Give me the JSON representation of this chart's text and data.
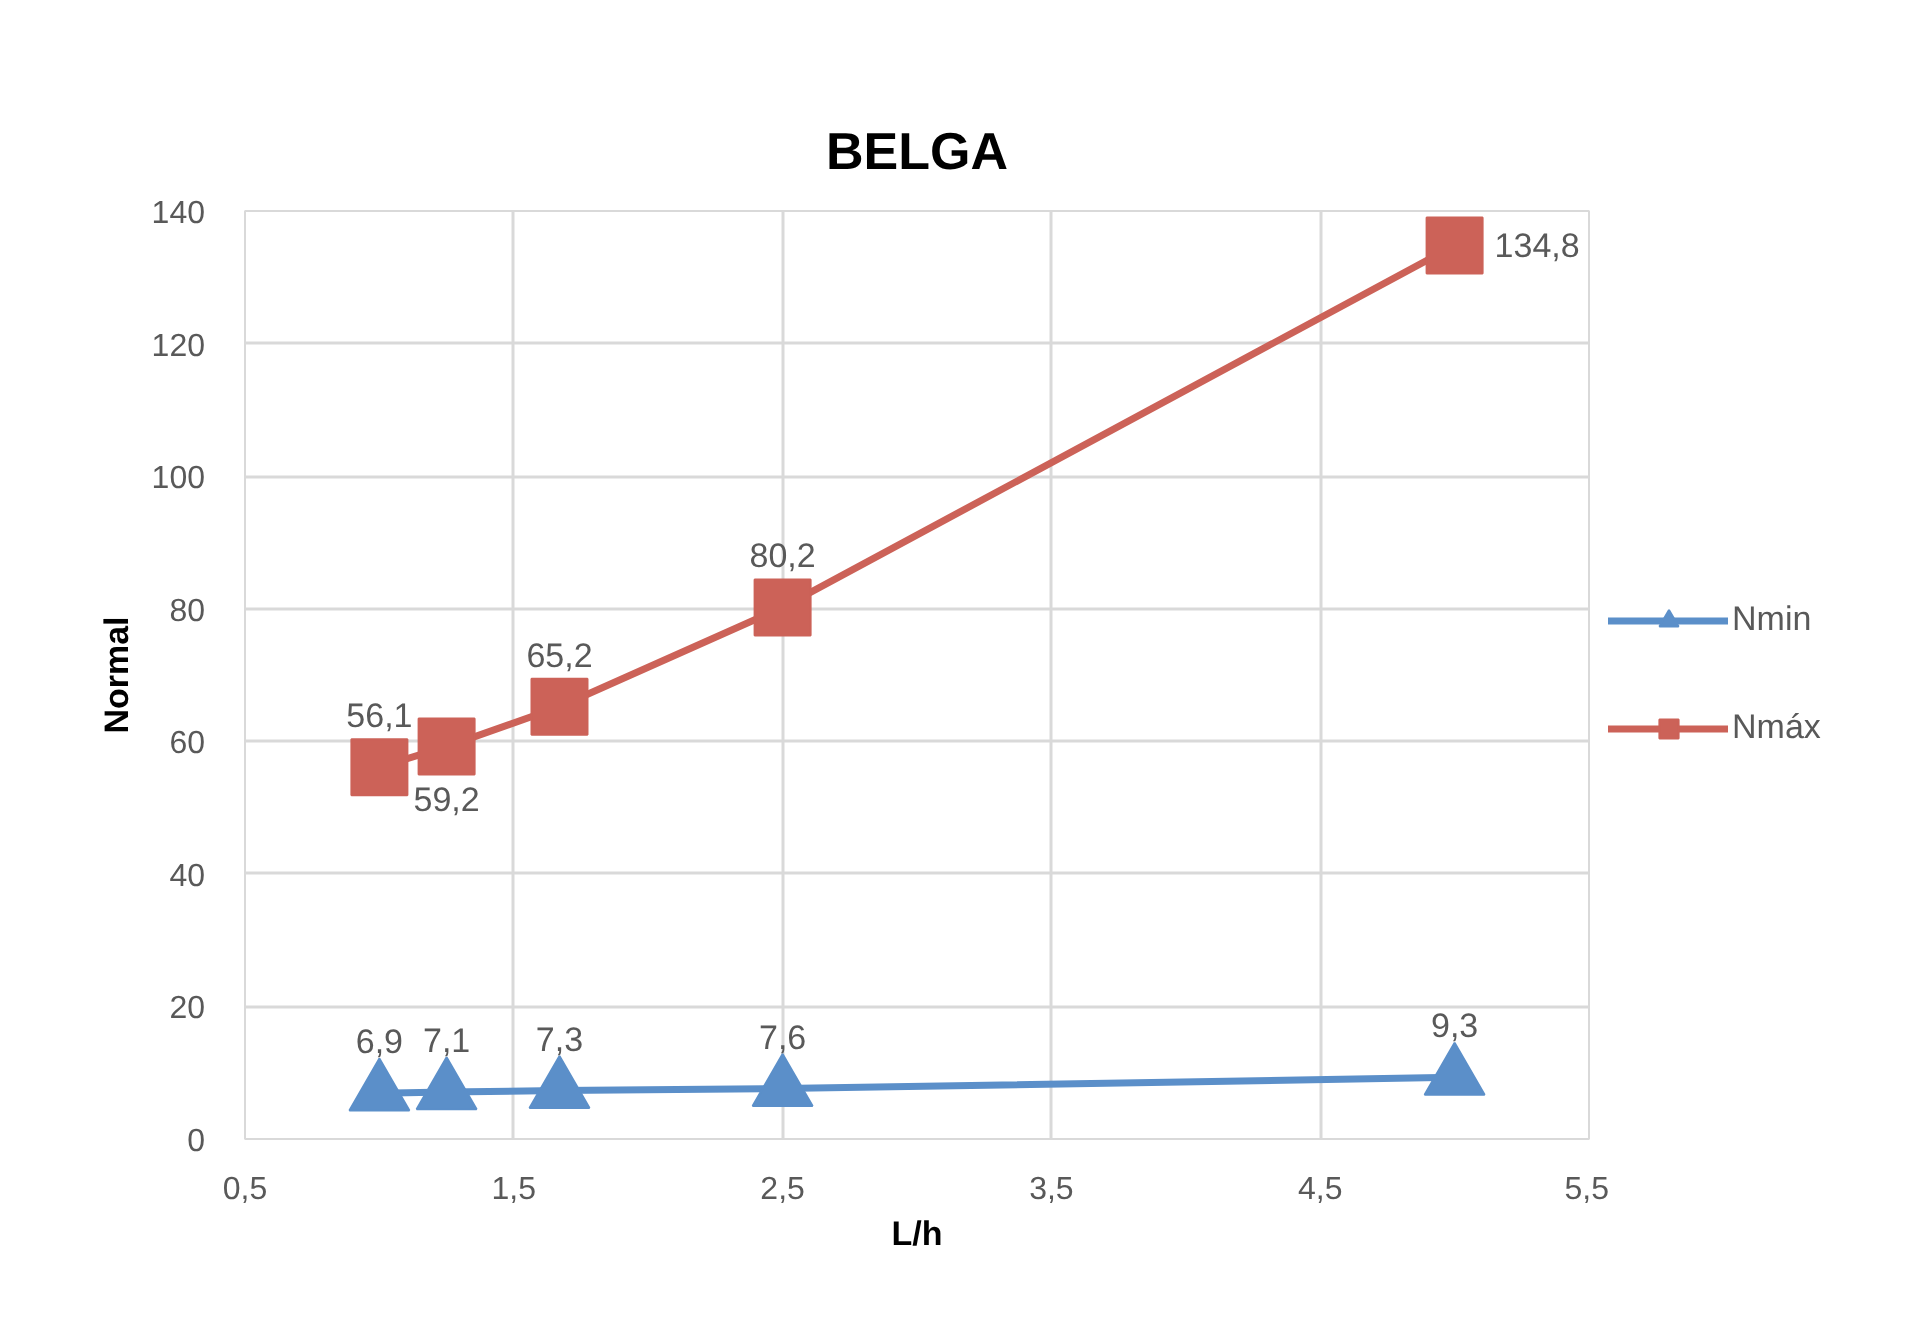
{
  "chart_data": {
    "type": "line",
    "title": "BELGA",
    "xlabel": "L/h",
    "ylabel": "Normal",
    "x": [
      1,
      1.25,
      1.67,
      2.5,
      5
    ],
    "series": [
      {
        "name": "Nmin",
        "color": "#5b8fc9",
        "marker": "triangle",
        "values": [
          6.9,
          7.1,
          7.3,
          7.6,
          9.3
        ],
        "value_labels": [
          "6,9",
          "7,1",
          "7,3",
          "7,6",
          "9,3"
        ]
      },
      {
        "name": "Nmáx",
        "color": "#cc6258",
        "marker": "square",
        "values": [
          56.1,
          59.2,
          65.2,
          80.2,
          134.8
        ],
        "value_labels": [
          "56,1",
          "59,2",
          "65,2",
          "80,2",
          "134,8"
        ]
      }
    ],
    "xlim": [
      0.5,
      5.5
    ],
    "xticks": [
      {
        "value": 0.5,
        "label": "0,5"
      },
      {
        "value": 1.5,
        "label": "1,5"
      },
      {
        "value": 2.5,
        "label": "2,5"
      },
      {
        "value": 3.5,
        "label": "3,5"
      },
      {
        "value": 4.5,
        "label": "4,5"
      },
      {
        "value": 5.5,
        "label": "5,5"
      }
    ],
    "ylim": [
      0,
      140
    ],
    "yticks": [
      0,
      20,
      40,
      60,
      80,
      100,
      120,
      140
    ],
    "grid": true,
    "legend": "right",
    "line_style": "solid"
  }
}
